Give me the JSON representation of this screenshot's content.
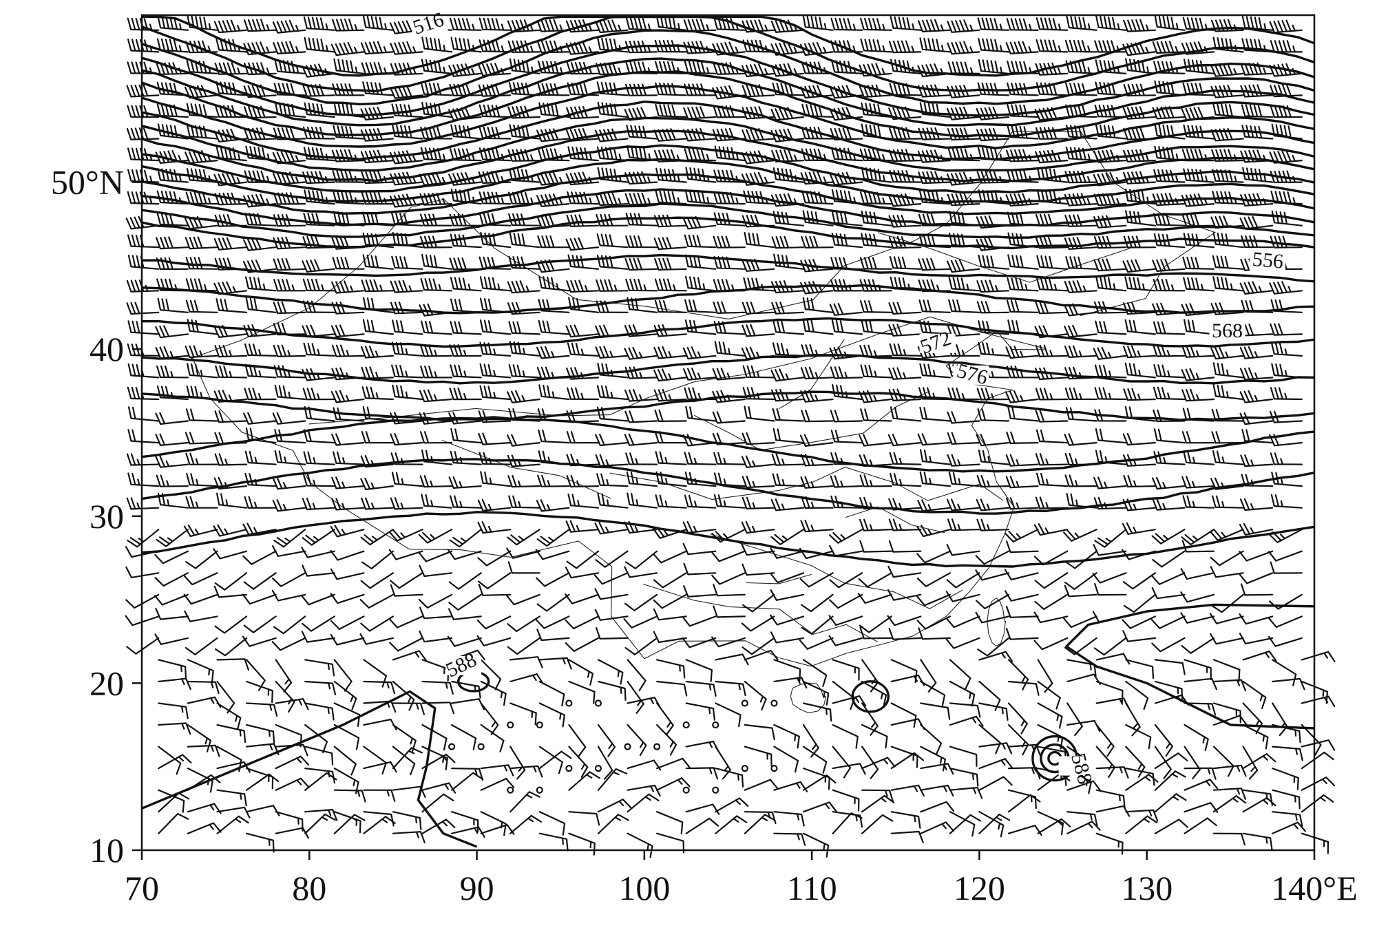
{
  "map": {
    "lon_ticks": [
      {
        "lon": 70,
        "label": "70"
      },
      {
        "lon": 80,
        "label": "80"
      },
      {
        "lon": 90,
        "label": "90"
      },
      {
        "lon": 100,
        "label": "100"
      },
      {
        "lon": 110,
        "label": "110"
      },
      {
        "lon": 120,
        "label": "120"
      },
      {
        "lon": 130,
        "label": "130"
      },
      {
        "lon": 140,
        "label": "140°E"
      }
    ],
    "lat_ticks": [
      {
        "lat": 10,
        "label": "10"
      },
      {
        "lat": 20,
        "label": "20"
      },
      {
        "lat": 30,
        "label": "30"
      },
      {
        "lat": 40,
        "label": "40"
      },
      {
        "lat": 50,
        "label": "50°N"
      }
    ],
    "extent": {
      "lon_min": 70,
      "lon_max": 140,
      "lat_min": 10,
      "lat_max": 60
    },
    "contour_labels": [
      {
        "text": "516",
        "lon": 87.2,
        "lat": 59.2,
        "angle": -18
      },
      {
        "text": "556",
        "lon": 137.2,
        "lat": 45.0,
        "angle": 5
      },
      {
        "text": "568",
        "lon": 134.8,
        "lat": 40.8,
        "angle": 0
      },
      {
        "text": "572",
        "lon": 117.5,
        "lat": 40.1,
        "angle": -20
      },
      {
        "text": "576",
        "lon": 119.5,
        "lat": 38.2,
        "angle": 15
      },
      {
        "text": "588",
        "lon": 89.2,
        "lat": 20.8,
        "angle": -25
      },
      {
        "text": "588",
        "lon": 125.8,
        "lat": 14.8,
        "angle": 75
      }
    ]
  }
}
